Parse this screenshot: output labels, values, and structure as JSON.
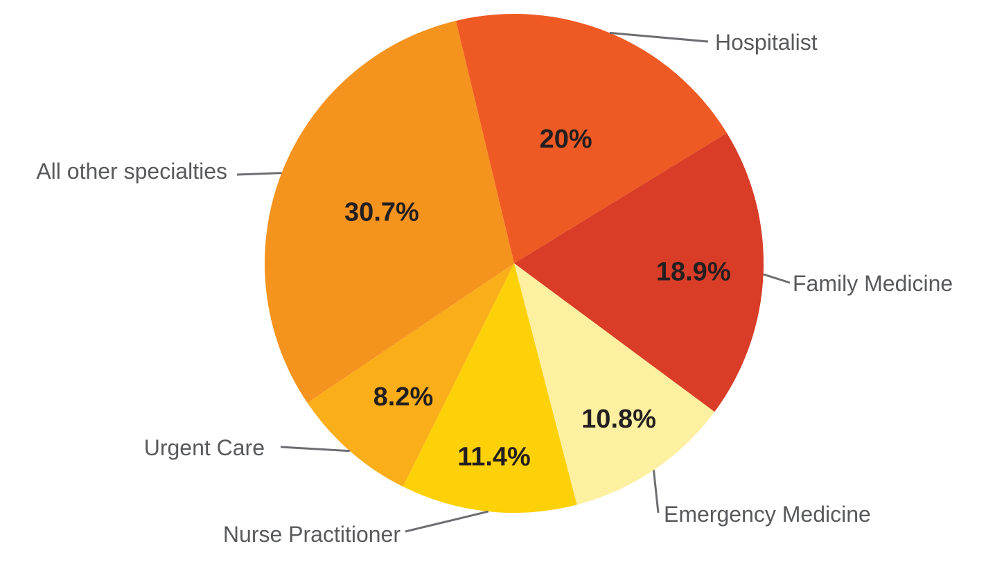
{
  "chart_data": {
    "type": "pie",
    "title": "",
    "start_category": "Hospitalist",
    "direction": "clockwise",
    "slices": [
      {
        "label": "Hospitalist",
        "value": 20,
        "value_label": "20%",
        "color": "#EF5A24"
      },
      {
        "label": "Family Medicine",
        "value": 18.9,
        "value_label": "18.9%",
        "color": "#D93D27"
      },
      {
        "label": "Emergency Medicine",
        "value": 10.8,
        "value_label": "10.8%",
        "color": "#FDF0A1"
      },
      {
        "label": "Nurse Practitioner",
        "value": 11.4,
        "value_label": "11.4%",
        "color": "#FDD107"
      },
      {
        "label": "Urgent Care",
        "value": 8.2,
        "value_label": "8.2%",
        "color": "#FAAE1A"
      },
      {
        "label": "All other specialties",
        "value": 30.7,
        "value_label": "30.7%",
        "color": "#F5931F"
      }
    ]
  }
}
